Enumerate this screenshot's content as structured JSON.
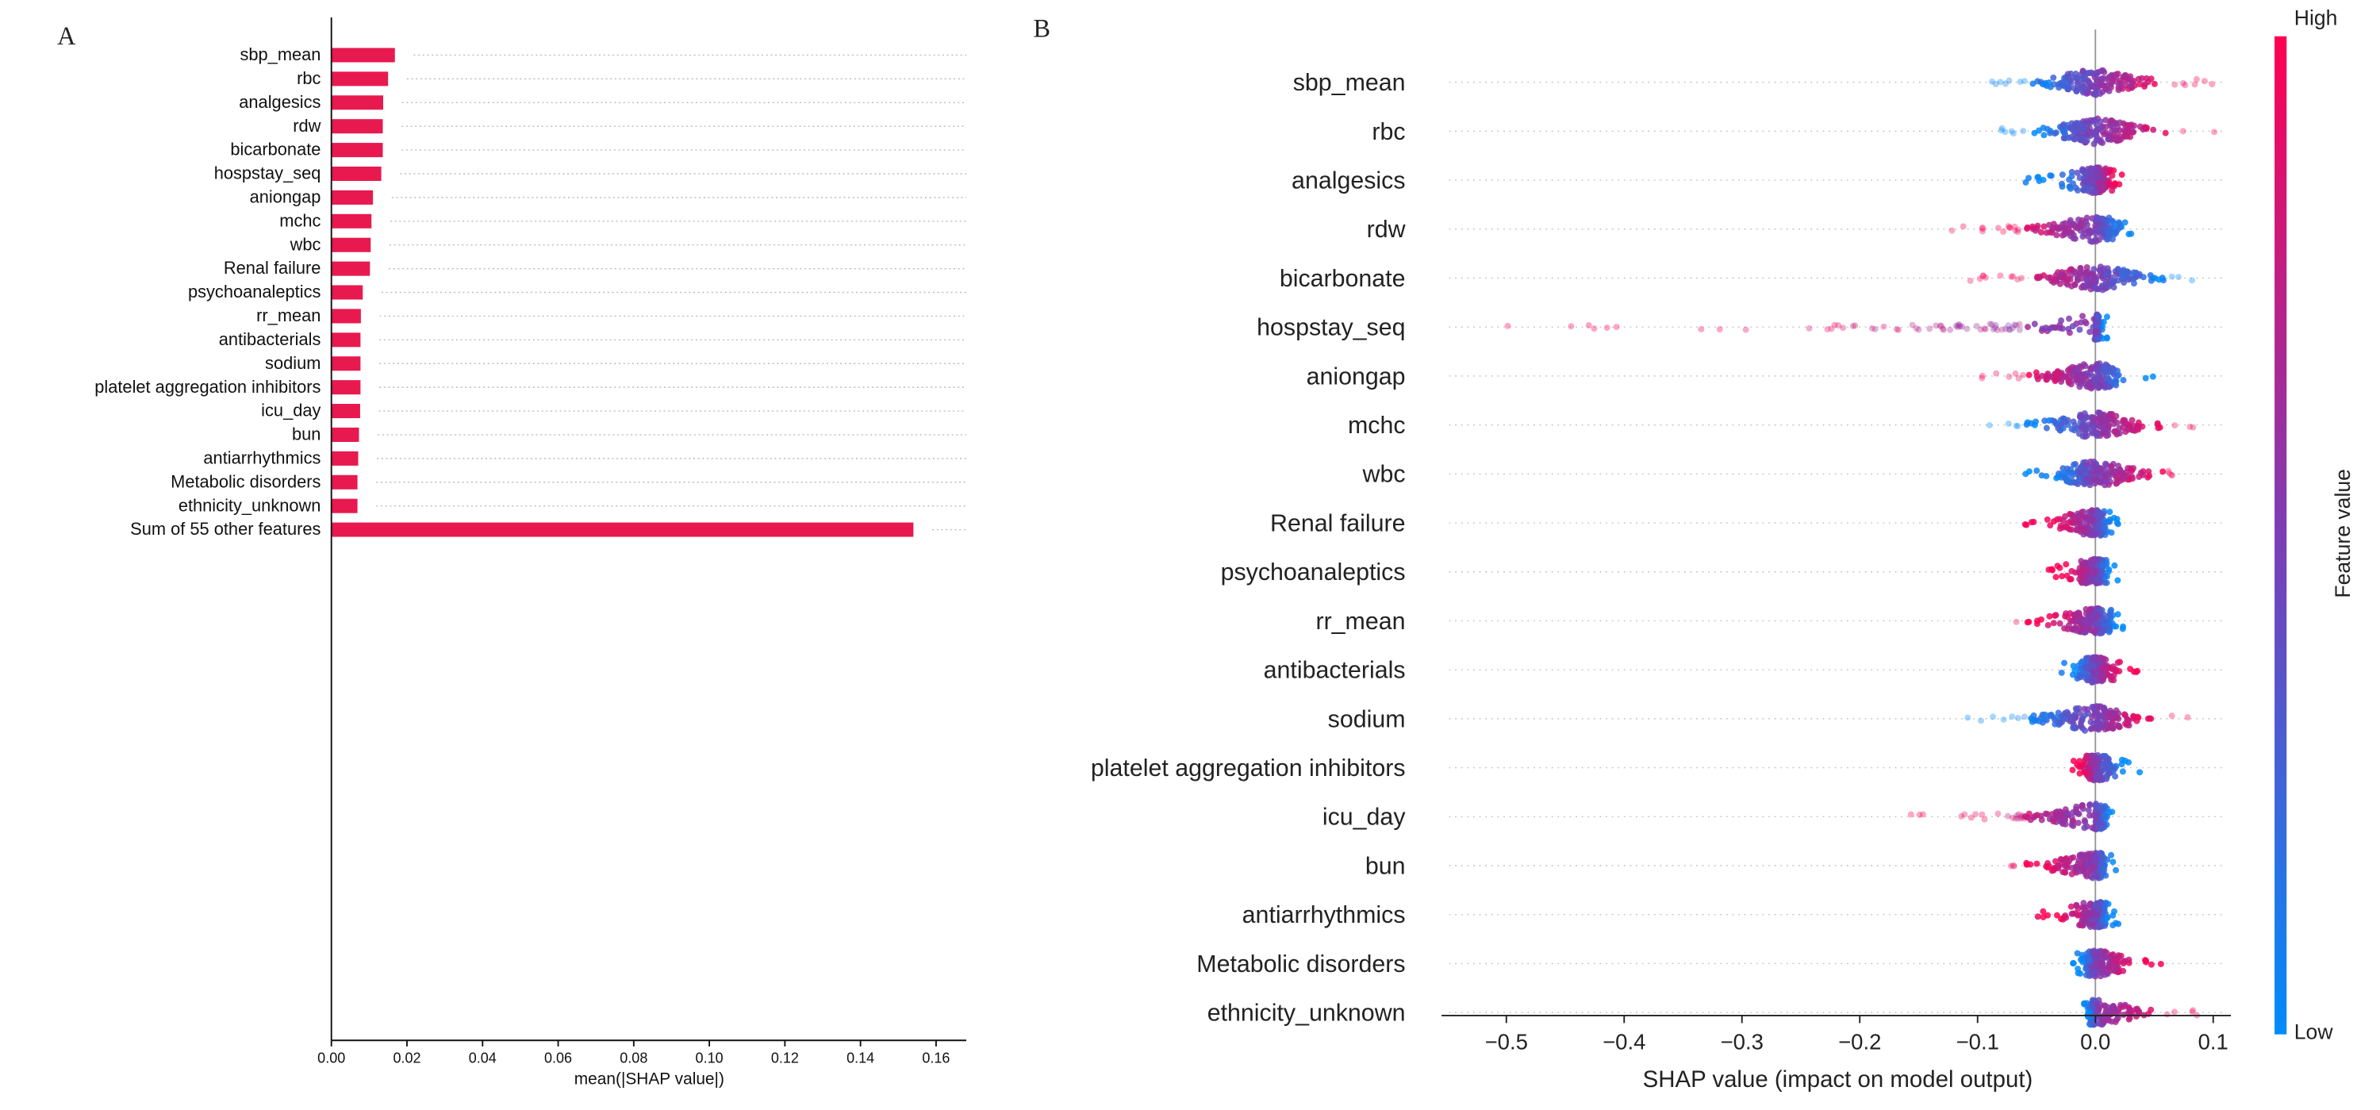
{
  "chart_data": [
    {
      "type": "bar",
      "panel_label": "A",
      "orientation": "horizontal",
      "categories": [
        "sbp_mean",
        "rbc",
        "analgesics",
        "rdw",
        "bicarbonate",
        "hospstay_seq",
        "aniongap",
        "mchc",
        "wbc",
        "Renal failure",
        "psychoanaleptics",
        "rr_mean",
        "antibacterials",
        "sodium",
        "platelet aggregation inhibitors",
        "icu_day",
        "bun",
        "antiarrhythmics",
        "Metabolic disorders",
        "ethnicity_unknown",
        "Sum of 55 other features"
      ],
      "values": [
        0.0168,
        0.015,
        0.0137,
        0.0136,
        0.0136,
        0.0132,
        0.011,
        0.0106,
        0.0104,
        0.0102,
        0.0083,
        0.0078,
        0.0077,
        0.0077,
        0.0077,
        0.0076,
        0.0073,
        0.0071,
        0.0069,
        0.0069,
        0.154
      ],
      "xlabel": "mean(|SHAP value|)",
      "xlim": [
        0,
        0.168
      ],
      "xticks": [
        "0.00",
        "0.02",
        "0.04",
        "0.06",
        "0.08",
        "0.10",
        "0.12",
        "0.14",
        "0.16"
      ],
      "bar_color": "#e8194f",
      "dotted_guides": true
    },
    {
      "type": "scatter",
      "subtype": "shap-beeswarm",
      "panel_label": "B",
      "features": [
        "sbp_mean",
        "rbc",
        "analgesics",
        "rdw",
        "bicarbonate",
        "hospstay_seq",
        "aniongap",
        "mchc",
        "wbc",
        "Renal failure",
        "psychoanaleptics",
        "rr_mean",
        "antibacterials",
        "sodium",
        "platelet aggregation inhibitors",
        "icu_day",
        "bun",
        "antiarrhythmics",
        "Metabolic disorders",
        "ethnicity_unknown"
      ],
      "xlabel": "SHAP value (impact on model output)",
      "xlim": [
        -0.555,
        0.115
      ],
      "xticks": [
        "−0.5",
        "−0.4",
        "−0.3",
        "−0.2",
        "−0.1",
        "0.0",
        "0.1"
      ],
      "colorbar": {
        "label": "Feature value",
        "high": "High",
        "low": "Low",
        "high_color": "#ff0052",
        "low_color": "#008bfb"
      },
      "shap_ranges": [
        {
          "min": -0.09,
          "max": 0.1,
          "high_side": "positive"
        },
        {
          "min": -0.08,
          "max": 0.11,
          "high_side": "positive"
        },
        {
          "min": -0.06,
          "max": 0.03,
          "high_side": "positive"
        },
        {
          "min": -0.13,
          "max": 0.04,
          "high_side": "negative"
        },
        {
          "min": -0.11,
          "max": 0.1,
          "high_side": "negative"
        },
        {
          "min": -0.52,
          "max": 0.01,
          "high_side": "negative"
        },
        {
          "min": -0.1,
          "max": 0.05,
          "high_side": "negative"
        },
        {
          "min": -0.09,
          "max": 0.09,
          "high_side": "positive"
        },
        {
          "min": -0.06,
          "max": 0.09,
          "high_side": "positive"
        },
        {
          "min": -0.06,
          "max": 0.02,
          "high_side": "negative"
        },
        {
          "min": -0.04,
          "max": 0.02,
          "high_side": "negative"
        },
        {
          "min": -0.07,
          "max": 0.03,
          "high_side": "negative"
        },
        {
          "min": -0.03,
          "max": 0.04,
          "high_side": "positive"
        },
        {
          "min": -0.11,
          "max": 0.08,
          "high_side": "positive"
        },
        {
          "min": -0.02,
          "max": 0.04,
          "high_side": "negative"
        },
        {
          "min": -0.18,
          "max": 0.02,
          "high_side": "negative"
        },
        {
          "min": -0.08,
          "max": 0.02,
          "high_side": "negative"
        },
        {
          "min": -0.05,
          "max": 0.02,
          "high_side": "negative"
        },
        {
          "min": -0.02,
          "max": 0.06,
          "high_side": "positive"
        },
        {
          "min": -0.01,
          "max": 0.1,
          "high_side": "positive"
        }
      ]
    }
  ]
}
